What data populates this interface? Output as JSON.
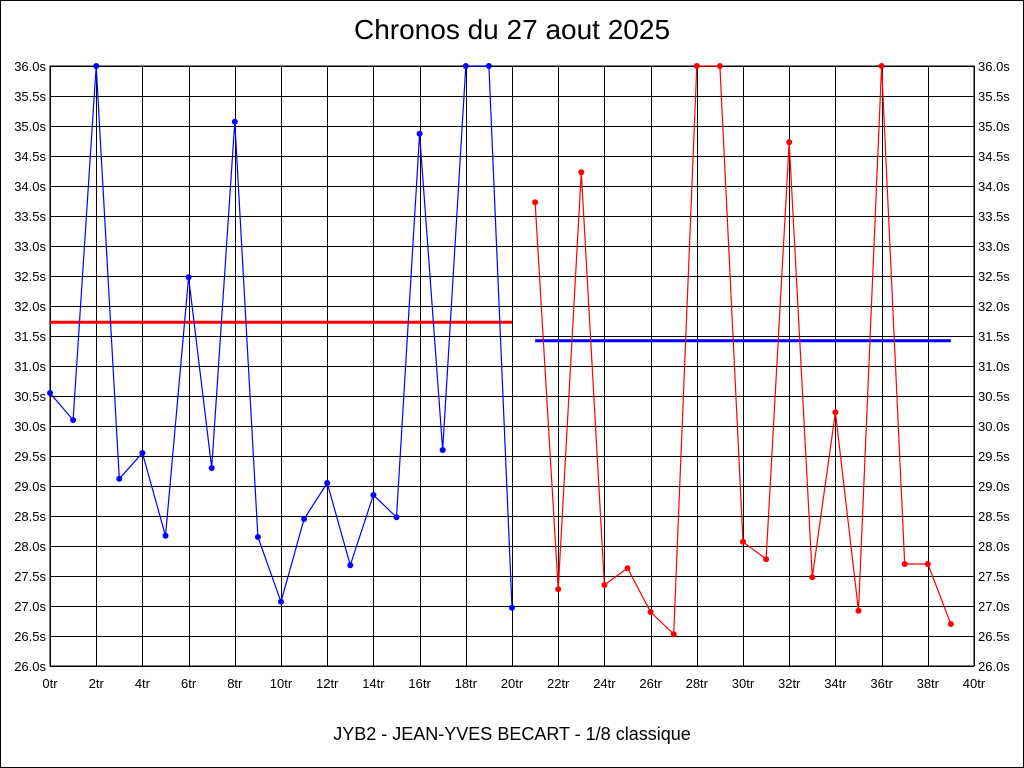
{
  "chart_data": {
    "type": "line",
    "title": "Chronos du 27 aout 2025",
    "footer": "JYB2 - JEAN-YVES BECART - 1/8 classique",
    "x_tick_suffix": "tr",
    "y_tick_suffix": "s",
    "xlim": [
      0,
      40
    ],
    "ylim": [
      26.0,
      36.0
    ],
    "x_tick_step": 2,
    "y_tick_step": 0.5,
    "grid": true,
    "series": [
      {
        "color": "#0000ff",
        "x": [
          0,
          1,
          2,
          3,
          4,
          5,
          6,
          7,
          8,
          9,
          10,
          11,
          12,
          13,
          14,
          15,
          16,
          17,
          18,
          19,
          20
        ],
        "y": [
          30.55,
          30.1,
          36.0,
          29.12,
          29.55,
          28.17,
          32.48,
          29.3,
          35.07,
          28.15,
          27.07,
          28.45,
          29.05,
          27.68,
          28.85,
          28.48,
          34.87,
          29.6,
          36.0,
          36.0,
          26.97
        ]
      },
      {
        "color": "#ff0000",
        "x": [
          21,
          22,
          23,
          24,
          25,
          26,
          27,
          28,
          29,
          30,
          31,
          32,
          33,
          34,
          35,
          36,
          37,
          38,
          39
        ],
        "y": [
          33.73,
          27.28,
          34.23,
          27.35,
          27.63,
          26.9,
          26.53,
          36.0,
          36.0,
          28.07,
          27.78,
          34.73,
          27.48,
          30.23,
          26.92,
          36.0,
          27.7,
          27.7,
          26.7
        ]
      }
    ],
    "average_lines": [
      {
        "color": "#ff0000",
        "x": [
          0,
          20
        ],
        "y": 31.73
      },
      {
        "color": "#0000ff",
        "x": [
          21,
          39
        ],
        "y": 31.42
      }
    ]
  }
}
